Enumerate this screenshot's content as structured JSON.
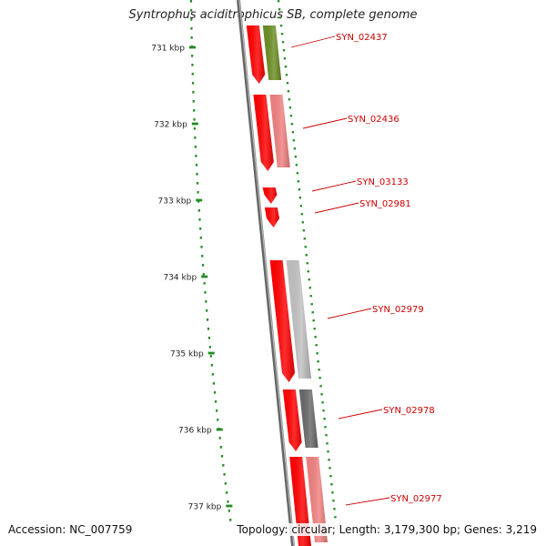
{
  "title": "Syntrophus aciditrophicus SB, complete genome",
  "footer": {
    "accession": "Accession: NC_007759",
    "summary": "Topology: circular; Length: 3,179,300 bp; Genes: 3,219"
  },
  "ruler": {
    "ticks": [
      {
        "label": "731 kbp"
      },
      {
        "label": "732 kbp"
      },
      {
        "label": "733 kbp"
      },
      {
        "label": "734 kbp"
      },
      {
        "label": "735 kbp"
      },
      {
        "label": "736 kbp"
      },
      {
        "label": "737 kbp"
      }
    ]
  },
  "genes": [
    {
      "name": "SYN_02437",
      "cog_color": "#6b8e23"
    },
    {
      "name": "SYN_02436",
      "cog_color": "#f08080"
    },
    {
      "name": "SYN_03133",
      "cog_color": null
    },
    {
      "name": "SYN_02981",
      "cog_color": null
    },
    {
      "name": "SYN_02979",
      "cog_color": "#c0c0c0"
    },
    {
      "name": "SYN_02978",
      "cog_color": "#696969"
    },
    {
      "name": "SYN_02977",
      "cog_color": "#f08080"
    }
  ],
  "colors": {
    "strand": "#ff0000",
    "backbone": "#888888",
    "ticks": "#228b22",
    "label": "#cc0000"
  }
}
